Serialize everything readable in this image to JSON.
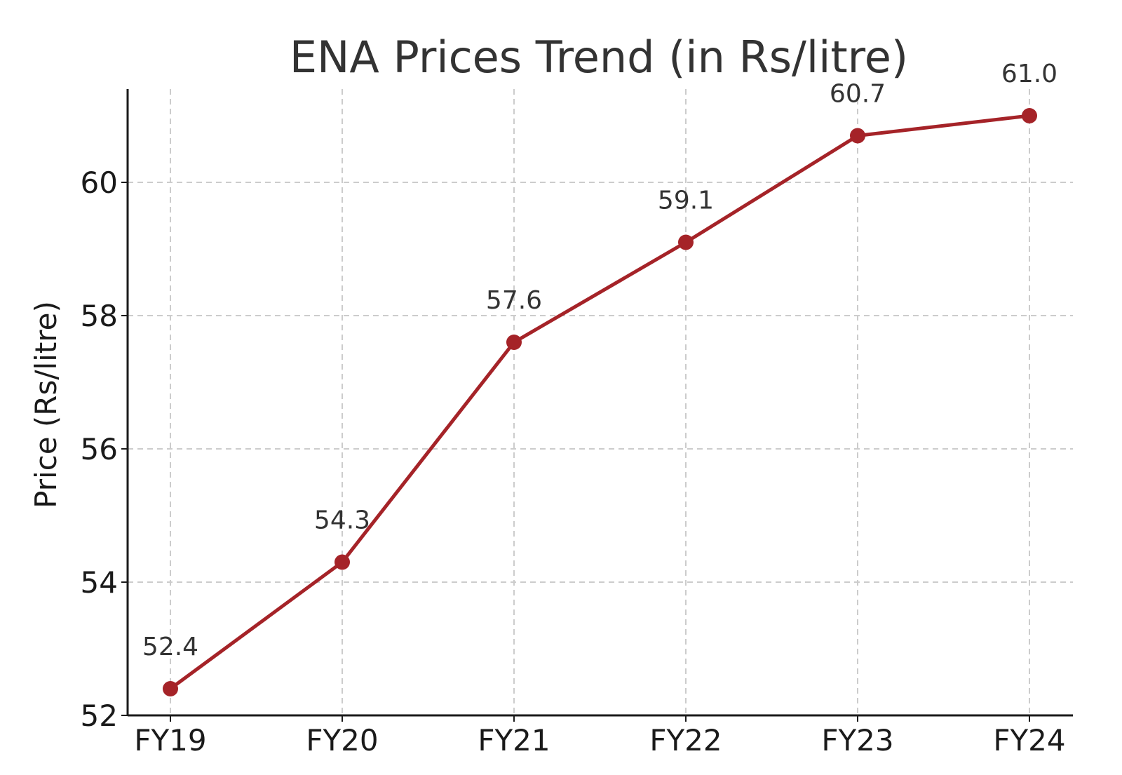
{
  "chart_data": {
    "type": "line",
    "title": "ENA Prices Trend (in Rs/litre)",
    "xlabel": "",
    "ylabel": "Price (Rs/litre)",
    "categories": [
      "FY19",
      "FY20",
      "FY21",
      "FY22",
      "FY23",
      "FY24"
    ],
    "series": [
      {
        "values": [
          52.4,
          54.3,
          57.6,
          59.1,
          60.7,
          61.0
        ]
      }
    ],
    "data_labels": [
      "52.4",
      "54.3",
      "57.6",
      "59.1",
      "60.7",
      "61.0"
    ],
    "yticks": [
      52,
      54,
      56,
      58,
      60
    ],
    "ytick_labels": [
      "52",
      "54",
      "56",
      "58",
      "60"
    ],
    "ylim": [
      52,
      61.4
    ],
    "grid": true,
    "legend": "none",
    "colors": {
      "line": "#a52328",
      "marker": "#a52328"
    }
  }
}
